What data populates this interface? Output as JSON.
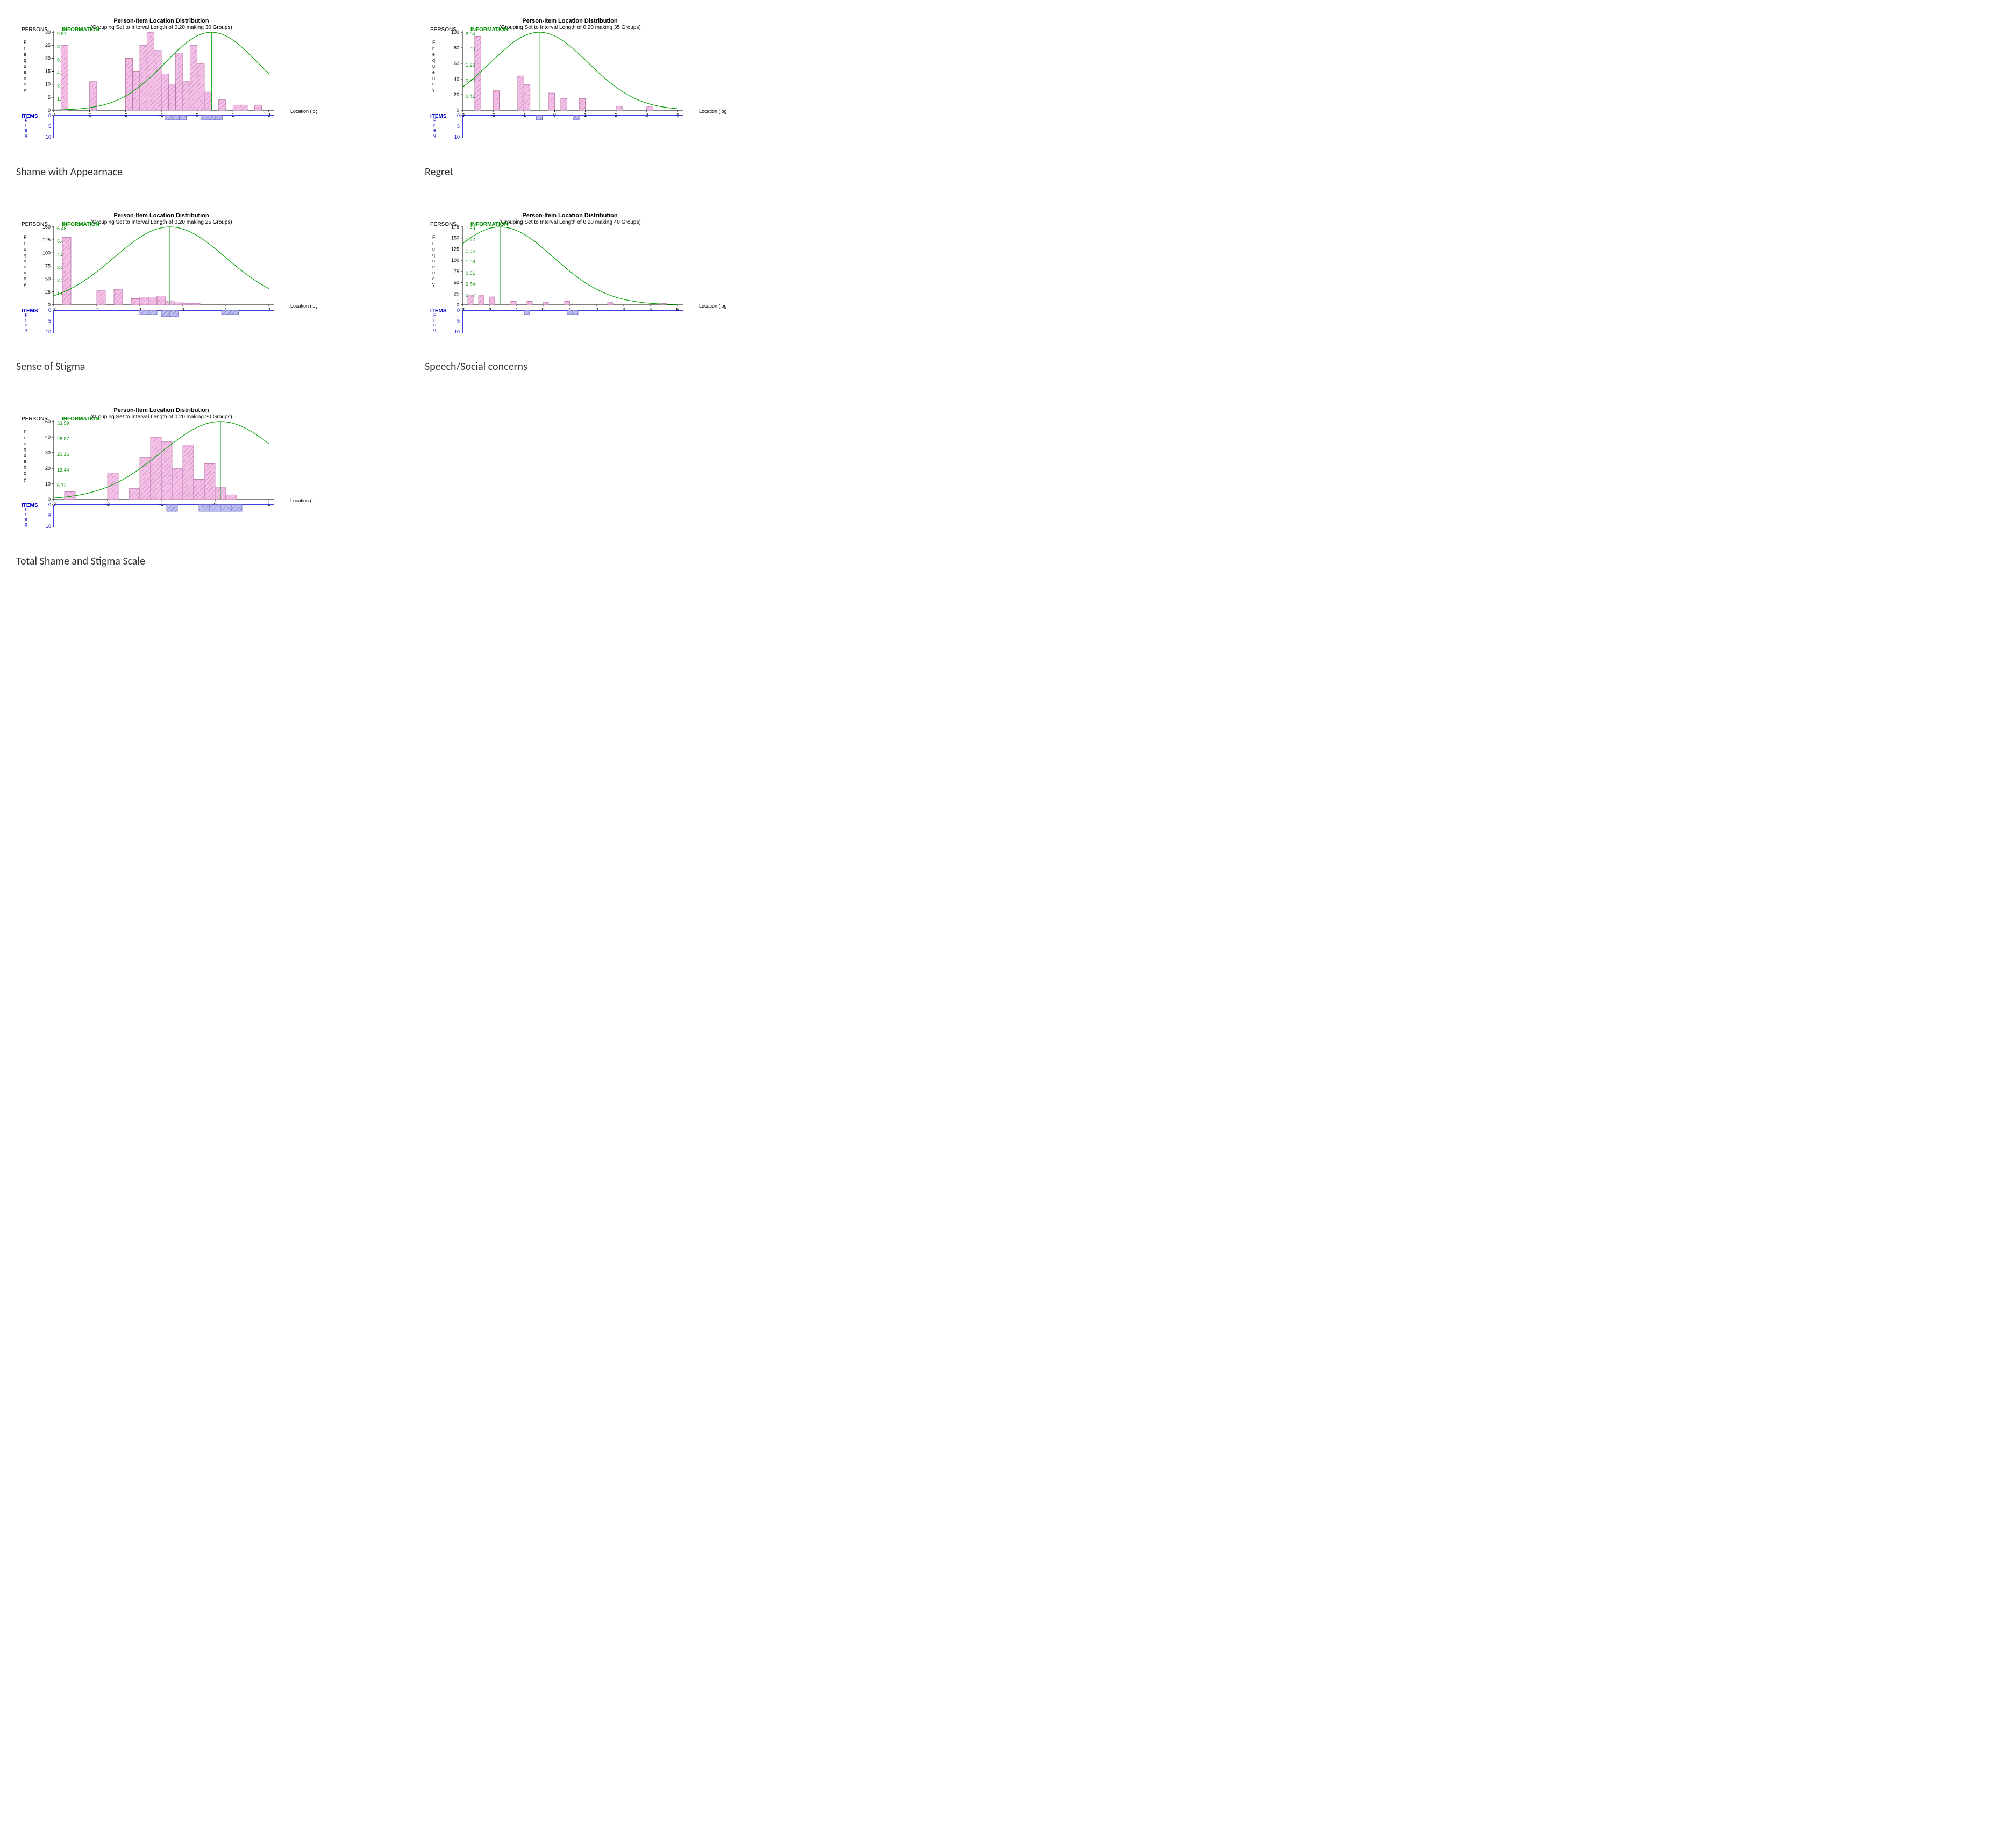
{
  "colors": {
    "bar_fill": "#f5c0e8",
    "bar_stroke": "#b070a0",
    "item_fill": "#c0c0f0",
    "item_stroke": "#6060c0",
    "curve": "#00a000",
    "axis": "#000000",
    "items_axis": "#0000cc",
    "background": "#ffffff"
  },
  "common_title": "Person-Item Location Distribution",
  "x_axis_label": "Location (logits)",
  "persons_header": "PERSONS",
  "info_header": "INFORMATION",
  "items_header": "ITEMS",
  "items_side_label": "F\\nr\\ne\\nq",
  "charts": [
    {
      "caption": "Shame with Appearnace",
      "subtitle": "(Grouping Set to Interval Length of 0.20 making 30 Groups)",
      "x_min": -4,
      "x_max": 2,
      "x_step": 1,
      "y_max": 30,
      "y_step": 5,
      "info_ticks": [
        9.87,
        8.22,
        6.58,
        4.93,
        3.29,
        1.64
      ],
      "items_y_ticks": [
        0,
        5,
        10
      ],
      "bin_width": 0.2,
      "bars": [
        {
          "x": -3.8,
          "v": 25
        },
        {
          "x": -3.0,
          "v": 11
        },
        {
          "x": -2.0,
          "v": 20
        },
        {
          "x": -1.8,
          "v": 15
        },
        {
          "x": -1.6,
          "v": 25
        },
        {
          "x": -1.4,
          "v": 30
        },
        {
          "x": -1.2,
          "v": 23
        },
        {
          "x": -1.0,
          "v": 14
        },
        {
          "x": -0.8,
          "v": 10
        },
        {
          "x": -0.6,
          "v": 22
        },
        {
          "x": -0.4,
          "v": 11
        },
        {
          "x": -0.2,
          "v": 25
        },
        {
          "x": 0.0,
          "v": 18
        },
        {
          "x": 0.2,
          "v": 7
        },
        {
          "x": 0.6,
          "v": 4
        },
        {
          "x": 1.0,
          "v": 2
        },
        {
          "x": 1.2,
          "v": 2
        },
        {
          "x": 1.6,
          "v": 2
        }
      ],
      "items": [
        {
          "x": -0.9,
          "v": 2
        },
        {
          "x": -0.7,
          "v": 2
        },
        {
          "x": -0.5,
          "v": 2
        },
        {
          "x": 0.1,
          "v": 2
        },
        {
          "x": 0.3,
          "v": 2
        },
        {
          "x": 0.5,
          "v": 2
        }
      ],
      "curve_peak_x": 0.4,
      "curve_peak_h": 1.0,
      "curve_sd": 1.3
    },
    {
      "caption": "Regret",
      "subtitle": "(Grouping Set to Interval Length of 0.20 making 35 Groups)",
      "x_min": -3,
      "x_max": 4,
      "x_step": 1,
      "y_max": 100,
      "y_step": 20,
      "info_ticks": [
        2.04,
        1.63,
        1.23,
        0.82,
        0.41
      ],
      "items_y_ticks": [
        0,
        5,
        10
      ],
      "bin_width": 0.2,
      "bars": [
        {
          "x": -2.6,
          "v": 95
        },
        {
          "x": -2.0,
          "v": 25
        },
        {
          "x": -1.2,
          "v": 44
        },
        {
          "x": -1.0,
          "v": 33
        },
        {
          "x": -0.2,
          "v": 22
        },
        {
          "x": 0.2,
          "v": 15
        },
        {
          "x": 0.8,
          "v": 15
        },
        {
          "x": 2.0,
          "v": 5
        },
        {
          "x": 3.0,
          "v": 5
        }
      ],
      "items": [
        {
          "x": -0.6,
          "v": 2
        },
        {
          "x": 0.6,
          "v": 2
        }
      ],
      "curve_peak_x": -0.5,
      "curve_peak_h": 1.0,
      "curve_sd": 1.6
    },
    {
      "caption": "Sense of Stigma",
      "subtitle": "(Grouping Set to Interval Length of 0.20 making 25 Groups)",
      "x_min": -3,
      "x_max": 2,
      "x_step": 1,
      "y_max": 150,
      "y_step": 25,
      "info_ticks": [
        6.48,
        5.4,
        4.32,
        3.24,
        2.16,
        1.08
      ],
      "items_y_ticks": [
        0,
        5,
        10
      ],
      "bin_width": 0.2,
      "bars": [
        {
          "x": -2.8,
          "v": 130
        },
        {
          "x": -2.0,
          "v": 28
        },
        {
          "x": -1.6,
          "v": 30
        },
        {
          "x": -1.2,
          "v": 12
        },
        {
          "x": -1.0,
          "v": 15
        },
        {
          "x": -0.8,
          "v": 15
        },
        {
          "x": -0.6,
          "v": 17
        },
        {
          "x": -0.4,
          "v": 8
        },
        {
          "x": -0.2,
          "v": 4
        },
        {
          "x": 0.0,
          "v": 3
        },
        {
          "x": 0.2,
          "v": 3
        }
      ],
      "items": [
        {
          "x": -1.0,
          "v": 2
        },
        {
          "x": -0.8,
          "v": 2
        },
        {
          "x": -0.5,
          "v": 3
        },
        {
          "x": -0.3,
          "v": 3
        },
        {
          "x": 0.9,
          "v": 2
        },
        {
          "x": 1.1,
          "v": 2
        }
      ],
      "curve_peak_x": -0.3,
      "curve_peak_h": 1.0,
      "curve_sd": 1.3
    },
    {
      "caption": "Speech/Social concerns",
      "subtitle": "(Grouping Set to Interval Length of 0.20 making 40 Groups)",
      "x_min": -3,
      "x_max": 5,
      "x_step": 1,
      "y_max": 175,
      "y_step": 25,
      "info_ticks": [
        1.89,
        1.62,
        1.35,
        1.08,
        0.81,
        0.54,
        0.27
      ],
      "items_y_ticks": [
        0,
        5,
        10
      ],
      "bin_width": 0.2,
      "bars": [
        {
          "x": -2.8,
          "v": 22
        },
        {
          "x": -2.4,
          "v": 22
        },
        {
          "x": -2.0,
          "v": 18
        },
        {
          "x": -1.2,
          "v": 8
        },
        {
          "x": -0.6,
          "v": 8
        },
        {
          "x": 0.0,
          "v": 6
        },
        {
          "x": 0.8,
          "v": 8
        },
        {
          "x": 2.4,
          "v": 5
        },
        {
          "x": 4.4,
          "v": 3
        }
      ],
      "items": [
        {
          "x": -0.7,
          "v": 2
        },
        {
          "x": 0.9,
          "v": 2
        },
        {
          "x": 1.1,
          "v": 2
        }
      ],
      "curve_peak_x": -1.6,
      "curve_peak_h": 1.0,
      "curve_sd": 2.0
    },
    {
      "caption": "Total Shame and Stigma Scale",
      "subtitle": "(Grouping Set to Interval Length of 0.20 making 20 Groups)",
      "x_min": -3,
      "x_max": 1,
      "x_step": 1,
      "y_max": 50,
      "y_step": 10,
      "info_ticks": [
        33.59,
        26.87,
        20.16,
        13.44,
        6.72
      ],
      "items_y_ticks": [
        0,
        5,
        10
      ],
      "bin_width": 0.2,
      "bars": [
        {
          "x": -2.8,
          "v": 5
        },
        {
          "x": -2.0,
          "v": 17
        },
        {
          "x": -1.6,
          "v": 7
        },
        {
          "x": -1.4,
          "v": 27
        },
        {
          "x": -1.2,
          "v": 40
        },
        {
          "x": -1.0,
          "v": 37
        },
        {
          "x": -0.8,
          "v": 20
        },
        {
          "x": -0.6,
          "v": 35
        },
        {
          "x": -0.4,
          "v": 13
        },
        {
          "x": -0.2,
          "v": 23
        },
        {
          "x": 0.0,
          "v": 8
        },
        {
          "x": 0.2,
          "v": 3
        }
      ],
      "items": [
        {
          "x": -0.9,
          "v": 3
        },
        {
          "x": -0.3,
          "v": 3
        },
        {
          "x": -0.1,
          "v": 3
        },
        {
          "x": 0.1,
          "v": 3
        },
        {
          "x": 0.3,
          "v": 3
        }
      ],
      "curve_peak_x": 0.1,
      "curve_peak_h": 1.0,
      "curve_sd": 1.1
    }
  ]
}
